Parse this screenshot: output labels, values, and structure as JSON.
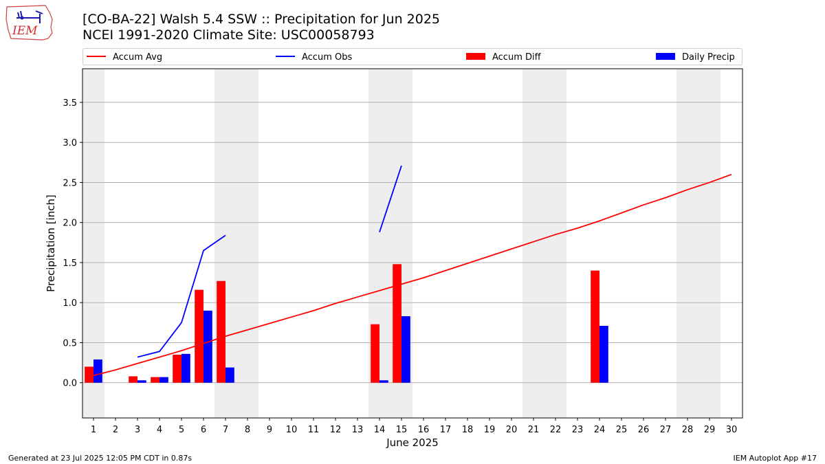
{
  "logo": {
    "text": "IEM"
  },
  "title": "[CO-BA-22] Walsh 5.4 SSW :: Precipitation for Jun 2025",
  "subtitle": "NCEI 1991-2020 Climate Site: USC00058793",
  "footer": {
    "left": "Generated at 23 Jul 2025 12:05 PM CDT in 0.87s",
    "right": "IEM Autoplot App #17"
  },
  "colors": {
    "avg": "#ff0000",
    "obs": "#0000ff",
    "diff": "#ff0000",
    "daily": "#0000ff",
    "weekend": "#eeeeee",
    "grid": "#b0b0b0"
  },
  "chart_data": {
    "type": "bar",
    "xlabel": "June 2025",
    "ylabel": "Precipitation [inch]",
    "xlim": [
      0.5,
      30.5
    ],
    "ylim": [
      -0.44,
      3.92
    ],
    "grid": "horizontal",
    "legend_placement": "top",
    "x": [
      1,
      2,
      3,
      4,
      5,
      6,
      7,
      8,
      9,
      10,
      11,
      12,
      13,
      14,
      15,
      16,
      17,
      18,
      19,
      20,
      21,
      22,
      23,
      24,
      25,
      26,
      27,
      28,
      29,
      30
    ],
    "x_ticks": [
      "1",
      "2",
      "3",
      "4",
      "5",
      "6",
      "7",
      "8",
      "9",
      "10",
      "11",
      "12",
      "13",
      "14",
      "15",
      "16",
      "17",
      "18",
      "19",
      "20",
      "21",
      "22",
      "23",
      "24",
      "25",
      "26",
      "27",
      "28",
      "29",
      "30"
    ],
    "y_ticks": [
      "0.0",
      "0.5",
      "1.0",
      "1.5",
      "2.0",
      "2.5",
      "3.0",
      "3.5"
    ],
    "y_tick_values": [
      0,
      0.5,
      1.0,
      1.5,
      2.0,
      2.5,
      3.0,
      3.5
    ],
    "weekend_spans": [
      [
        0.5,
        1.5
      ],
      [
        6.5,
        8.5
      ],
      [
        13.5,
        15.5
      ],
      [
        20.5,
        22.5
      ],
      [
        27.5,
        29.5
      ]
    ],
    "legend": [
      "Accum Avg",
      "Accum Obs",
      "Accum Diff",
      "Daily Precip"
    ],
    "series": [
      {
        "name": "Accum Avg",
        "kind": "line",
        "color": "#ff0000",
        "x": [
          1,
          2,
          3,
          4,
          5,
          6,
          7,
          8,
          9,
          10,
          11,
          12,
          13,
          14,
          15,
          16,
          17,
          18,
          19,
          20,
          21,
          22,
          23,
          24,
          25,
          26,
          27,
          28,
          29,
          30
        ],
        "values": [
          0.09,
          0.16,
          0.24,
          0.32,
          0.4,
          0.49,
          0.58,
          0.66,
          0.74,
          0.82,
          0.9,
          0.99,
          1.07,
          1.15,
          1.23,
          1.31,
          1.4,
          1.49,
          1.58,
          1.67,
          1.76,
          1.85,
          1.93,
          2.02,
          2.12,
          2.22,
          2.31,
          2.41,
          2.5,
          2.6
        ]
      },
      {
        "name": "Accum Obs",
        "kind": "line",
        "color": "#0000ff",
        "segments": [
          {
            "x": [
              3,
              4,
              5,
              6,
              7
            ],
            "values": [
              0.32,
              0.39,
              0.75,
              1.65,
              1.84
            ]
          },
          {
            "x": [
              14,
              15
            ],
            "values": [
              1.88,
              2.71
            ]
          }
        ]
      },
      {
        "name": "Accum Diff",
        "kind": "bar",
        "color": "#ff0000",
        "x": [
          1,
          3,
          4,
          5,
          6,
          7,
          14,
          15,
          24
        ],
        "values": [
          0.2,
          0.08,
          0.07,
          0.35,
          1.16,
          1.27,
          0.73,
          1.48,
          1.4
        ]
      },
      {
        "name": "Daily Precip",
        "kind": "bar",
        "color": "#0000ff",
        "x": [
          1,
          3,
          4,
          5,
          6,
          7,
          14,
          15,
          24
        ],
        "values": [
          0.29,
          0.03,
          0.07,
          0.36,
          0.9,
          0.19,
          0.03,
          0.83,
          0.71
        ]
      }
    ]
  }
}
